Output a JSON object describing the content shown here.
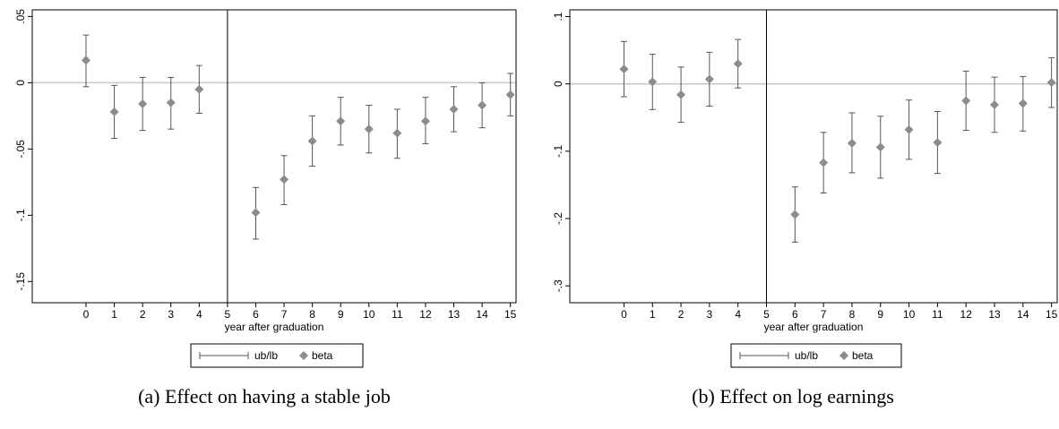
{
  "chart_data": [
    {
      "type": "scatter",
      "panel": "(a)",
      "caption": "(a) Effect on having a stable job",
      "xlabel": "year after graduation",
      "ylabel": "",
      "x": [
        0,
        1,
        2,
        3,
        4,
        5,
        6,
        7,
        8,
        9,
        10,
        11,
        12,
        13,
        14,
        15
      ],
      "xlim": [
        -1.9,
        15.2
      ],
      "ylim": [
        -0.166,
        0.055
      ],
      "yticks": [
        0.05,
        0,
        -0.05,
        -0.1,
        -0.15
      ],
      "ytick_labels": [
        ".05",
        "0",
        "-.05",
        "-.1",
        "-.15"
      ],
      "vline_at": 5,
      "hline_at": 0,
      "grid": false,
      "legend": {
        "position": "bottom",
        "entries": [
          "ub/lb",
          "beta"
        ]
      },
      "series": [
        {
          "name": "beta",
          "x": [
            0,
            1,
            2,
            3,
            4,
            6,
            7,
            8,
            9,
            10,
            11,
            12,
            13,
            14,
            15
          ],
          "values": [
            0.017,
            -0.022,
            -0.016,
            -0.015,
            -0.005,
            -0.098,
            -0.073,
            -0.044,
            -0.029,
            -0.035,
            -0.038,
            -0.029,
            -0.02,
            -0.017,
            -0.009
          ]
        },
        {
          "name": "ub/lb",
          "x": [
            0,
            1,
            2,
            3,
            4,
            6,
            7,
            8,
            9,
            10,
            11,
            12,
            13,
            14,
            15
          ],
          "ub": [
            0.036,
            -0.002,
            0.004,
            0.004,
            0.013,
            -0.079,
            -0.055,
            -0.025,
            -0.011,
            -0.017,
            -0.02,
            -0.011,
            -0.003,
            0.0,
            0.007
          ],
          "lb": [
            -0.003,
            -0.042,
            -0.036,
            -0.035,
            -0.023,
            -0.118,
            -0.092,
            -0.063,
            -0.047,
            -0.053,
            -0.057,
            -0.046,
            -0.037,
            -0.034,
            -0.025
          ]
        }
      ]
    },
    {
      "type": "scatter",
      "panel": "(b)",
      "caption": "(b) Effect on log earnings",
      "xlabel": "year after graduation",
      "ylabel": "",
      "x": [
        0,
        1,
        2,
        3,
        4,
        5,
        6,
        7,
        8,
        9,
        10,
        11,
        12,
        13,
        14,
        15
      ],
      "xlim": [
        -1.9,
        15.2
      ],
      "ylim": [
        -0.325,
        0.11
      ],
      "yticks": [
        0.1,
        0,
        -0.1,
        -0.2,
        -0.3
      ],
      "ytick_labels": [
        ".1",
        "0",
        "-.1",
        "-.2",
        "-.3"
      ],
      "vline_at": 5,
      "hline_at": 0,
      "grid": false,
      "legend": {
        "position": "bottom",
        "entries": [
          "ub/lb",
          "beta"
        ]
      },
      "series": [
        {
          "name": "beta",
          "x": [
            0,
            1,
            2,
            3,
            4,
            6,
            7,
            8,
            9,
            10,
            11,
            12,
            13,
            14,
            15
          ],
          "values": [
            0.022,
            0.003,
            -0.016,
            0.007,
            0.03,
            -0.194,
            -0.117,
            -0.088,
            -0.094,
            -0.068,
            -0.087,
            -0.025,
            -0.031,
            -0.029,
            0.002
          ]
        },
        {
          "name": "ub/lb",
          "x": [
            0,
            1,
            2,
            3,
            4,
            6,
            7,
            8,
            9,
            10,
            11,
            12,
            13,
            14,
            15
          ],
          "ub": [
            0.063,
            0.044,
            0.025,
            0.047,
            0.066,
            -0.153,
            -0.072,
            -0.043,
            -0.048,
            -0.024,
            -0.041,
            0.019,
            0.01,
            0.011,
            0.039
          ],
          "lb": [
            -0.019,
            -0.038,
            -0.057,
            -0.033,
            -0.006,
            -0.235,
            -0.162,
            -0.132,
            -0.14,
            -0.112,
            -0.133,
            -0.069,
            -0.072,
            -0.07,
            -0.035
          ]
        }
      ]
    }
  ]
}
